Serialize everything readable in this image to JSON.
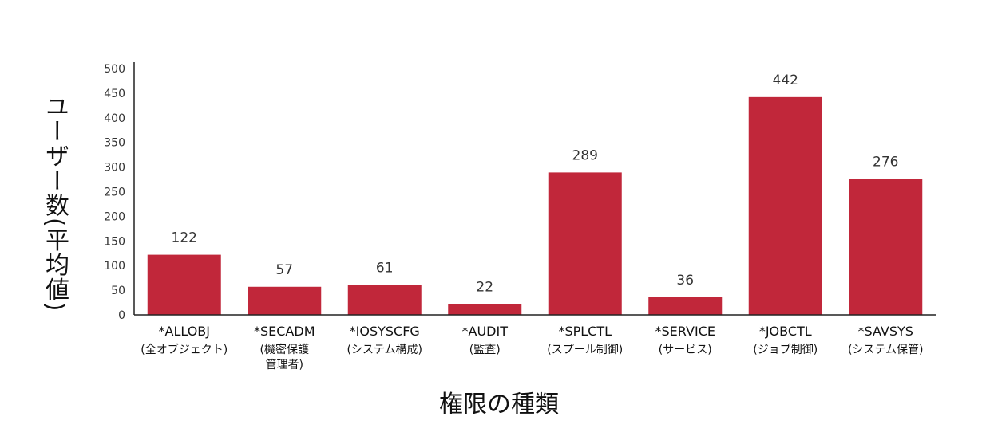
{
  "chart_data": {
    "type": "bar",
    "title": "",
    "xlabel": "権限の種類",
    "ylabel": "ユーザー数(平均値)",
    "ylim": [
      0,
      500
    ],
    "yticks": [
      0,
      50,
      100,
      150,
      200,
      250,
      300,
      350,
      400,
      450,
      500
    ],
    "grid": false,
    "legend": "none",
    "bar_color": "#c1273a",
    "categories": [
      {
        "name": "*ALLOBJ",
        "desc": [
          "(全オブジェクト)"
        ]
      },
      {
        "name": "*SECADM",
        "desc": [
          "(機密保護",
          "管理者)"
        ]
      },
      {
        "name": "*IOSYSCFG",
        "desc": [
          "(システム構成)"
        ]
      },
      {
        "name": "*AUDIT",
        "desc": [
          "(監査)"
        ]
      },
      {
        "name": "*SPLCTL",
        "desc": [
          "(スプール制御)"
        ]
      },
      {
        "name": "*SERVICE",
        "desc": [
          "(サービス)"
        ]
      },
      {
        "name": "*JOBCTL",
        "desc": [
          "(ジョブ制御)"
        ]
      },
      {
        "name": "*SAVSYS",
        "desc": [
          "(システム保管)"
        ]
      }
    ],
    "values": [
      122,
      57,
      61,
      22,
      289,
      36,
      442,
      276
    ],
    "data_labels": [
      "122",
      "57",
      "61",
      "22",
      "289",
      "36",
      "442",
      "276"
    ]
  }
}
